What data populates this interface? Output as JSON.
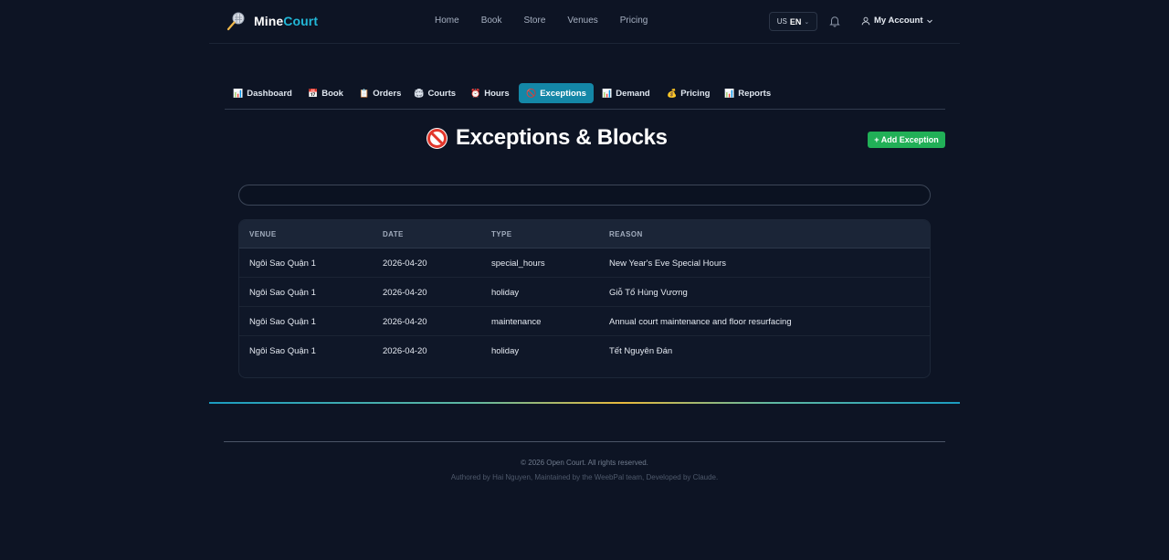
{
  "brand": {
    "part1": "Mine",
    "part2": "Court"
  },
  "topnav": [
    "Home",
    "Book",
    "Store",
    "Venues",
    "Pricing"
  ],
  "lang": {
    "flag": "US",
    "code": "EN"
  },
  "account": {
    "label": "My Account"
  },
  "subnav": [
    {
      "icon": "📊",
      "label": "Dashboard"
    },
    {
      "icon": "📅",
      "label": "Book"
    },
    {
      "icon": "📋",
      "label": "Orders"
    },
    {
      "icon": "🏟",
      "label": "Courts"
    },
    {
      "icon": "⏰",
      "label": "Hours"
    },
    {
      "icon": "🚫",
      "label": "Exceptions",
      "active": true
    },
    {
      "icon": "📊",
      "label": "Demand"
    },
    {
      "icon": "💰",
      "label": "Pricing"
    },
    {
      "icon": "📊",
      "label": "Reports"
    }
  ],
  "page": {
    "title": "Exceptions & Blocks",
    "add_button": "+ Add Exception"
  },
  "search": {
    "value": "",
    "placeholder": ""
  },
  "table": {
    "headers": [
      "VENUE",
      "DATE",
      "TYPE",
      "REASON"
    ],
    "rows": [
      [
        "Ngôi Sao Quận 1",
        "2026-04-20",
        "special_hours",
        "New Year's Eve Special Hours"
      ],
      [
        "Ngôi Sao Quận 1",
        "2026-04-20",
        "holiday",
        "Giỗ Tổ Hùng Vương"
      ],
      [
        "Ngôi Sao Quận 1",
        "2026-04-20",
        "maintenance",
        "Annual court maintenance and floor resurfacing"
      ],
      [
        "Ngôi Sao Quận 1",
        "2026-04-20",
        "holiday",
        "Tết Nguyên Đán"
      ]
    ]
  },
  "footer": {
    "copyright": "© 2026 Open Court. All rights reserved.",
    "credits": "Authored by Hai Nguyen, Maintained by the WeebPal team, Developed by Claude."
  },
  "colors": {
    "accent": "#1487a7",
    "brand_accent": "#22b8d8",
    "success": "#21b057",
    "background": "#0d1424"
  }
}
